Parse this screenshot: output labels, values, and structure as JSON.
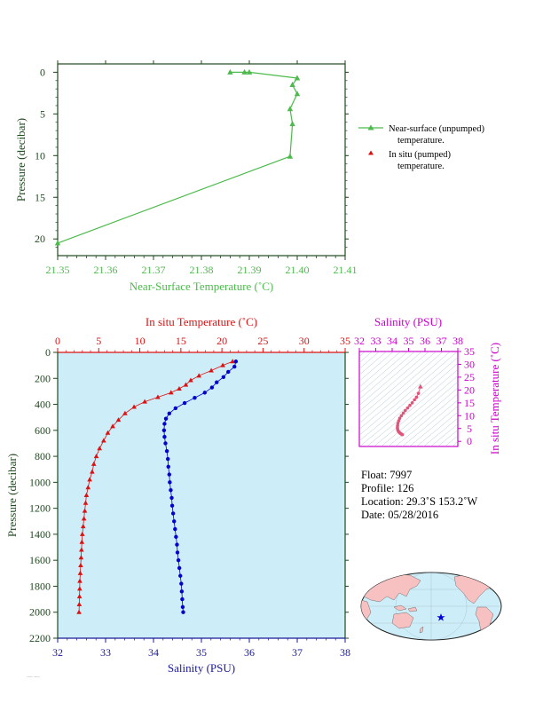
{
  "colors": {
    "green": "#4cbb4c",
    "green_axis": "#1f4a1f",
    "red": "#dd1111",
    "blue": "#0000cc",
    "navy": "#1a1a99",
    "magenta": "#cc00cc",
    "plot_bg": "#cdeef8",
    "land": "#f7c1c1",
    "ocean": "#cdeef8"
  },
  "info": {
    "float_line": "Float:  7997",
    "profile_line": "Profile:  126",
    "location_line": "Location:  29.3˚S  153.2˚W",
    "date_line": "Date:  05/28/2016"
  },
  "chart_data": [
    {
      "id": "near_surface",
      "type": "line",
      "xlabel": "Near-Surface Temperature (˚C)",
      "ylabel": "Pressure (decibar)",
      "xlim": [
        21.35,
        21.41
      ],
      "ylim": [
        22,
        -1
      ],
      "xticks": [
        "21.35",
        "21.36",
        "21.37",
        "21.38",
        "21.39",
        "21.40",
        "21.41"
      ],
      "yticks": [
        "0",
        "5",
        "10",
        "15",
        "20"
      ],
      "legend": [
        {
          "line1": "Near-surface (unpumped)",
          "line2": "temperature."
        },
        {
          "line1": "In situ (pumped)",
          "line2": "temperature."
        }
      ],
      "series": [
        {
          "name": "Near-surface (unpumped) temperature.",
          "x": [
            21.35,
            21.3985,
            21.399,
            21.3985,
            21.4,
            21.399,
            21.4,
            21.39,
            21.389,
            21.386
          ],
          "y": [
            20.5,
            10.1,
            6.2,
            4.4,
            2.6,
            1.5,
            0.7,
            0.0,
            0.0,
            0.0
          ]
        }
      ]
    },
    {
      "id": "profile",
      "type": "scatter",
      "xlabel": "Salinity (PSU)",
      "x2label": "In situ Temperature (˚C)",
      "ylabel": "Pressure (decibar)",
      "xlim": [
        32,
        38
      ],
      "x2lim": [
        0,
        35
      ],
      "ylim": [
        2200,
        0
      ],
      "xticks": [
        "32",
        "33",
        "34",
        "35",
        "36",
        "37",
        "38"
      ],
      "x2ticks": [
        "0",
        "5",
        "10",
        "15",
        "20",
        "25",
        "30",
        "35"
      ],
      "yticks": [
        "0",
        "200",
        "400",
        "600",
        "800",
        "1000",
        "1200",
        "1400",
        "1600",
        "1800",
        "2000",
        "2200"
      ],
      "series": [
        {
          "name": "In situ Temperature",
          "pressure": [
            70,
            100,
            140,
            180,
            215,
            250,
            280,
            310,
            345,
            380,
            420,
            470,
            520,
            570,
            620,
            680,
            740,
            800,
            860,
            920,
            980,
            1040,
            1100,
            1160,
            1220,
            1280,
            1340,
            1400,
            1460,
            1520,
            1580,
            1640,
            1700,
            1760,
            1820,
            1880,
            1940,
            2000
          ],
          "values": [
            21.3,
            20.1,
            18.7,
            17.2,
            16.2,
            15.6,
            14.8,
            13.8,
            12.2,
            10.6,
            9.3,
            8.2,
            7.4,
            6.7,
            6.1,
            5.6,
            5.1,
            4.7,
            4.4,
            4.2,
            3.9,
            3.7,
            3.5,
            3.4,
            3.3,
            3.2,
            3.1,
            3.0,
            2.95,
            2.9,
            2.85,
            2.8,
            2.75,
            2.7,
            2.68,
            2.66,
            2.63,
            2.6
          ]
        },
        {
          "name": "Salinity",
          "pressure": [
            70,
            110,
            150,
            190,
            230,
            270,
            310,
            350,
            390,
            430,
            470,
            510,
            550,
            600,
            650,
            700,
            760,
            820,
            880,
            940,
            1000,
            1060,
            1120,
            1180,
            1240,
            1300,
            1360,
            1420,
            1480,
            1540,
            1600,
            1660,
            1720,
            1780,
            1840,
            1900,
            1960,
            2000
          ],
          "values": [
            35.72,
            35.69,
            35.56,
            35.46,
            35.32,
            35.22,
            35.07,
            34.86,
            34.65,
            34.46,
            34.33,
            34.26,
            34.23,
            34.22,
            34.23,
            34.25,
            34.28,
            34.3,
            34.31,
            34.33,
            34.34,
            34.36,
            34.38,
            34.39,
            34.41,
            34.43,
            34.45,
            34.47,
            34.49,
            34.5,
            34.52,
            34.54,
            34.56,
            34.58,
            34.59,
            34.6,
            34.61,
            34.62
          ]
        }
      ]
    },
    {
      "id": "ts_diagram",
      "type": "scatter",
      "xlabel": "Salinity (PSU)",
      "ylabel": "In situ Temperature (˚C)",
      "xlim": [
        32,
        38
      ],
      "ylim": [
        -2,
        35
      ],
      "xticks": [
        "32",
        "33",
        "34",
        "35",
        "36",
        "37",
        "38"
      ],
      "yticks": [
        "0",
        "5",
        "10",
        "15",
        "20",
        "25",
        "30",
        "35"
      ],
      "series": [
        {
          "name": "T-S",
          "x": [
            35.72,
            35.6,
            35.48,
            35.36,
            35.22,
            35.08,
            34.94,
            34.8,
            34.68,
            34.56,
            34.46,
            34.4,
            34.35,
            34.33,
            34.32,
            34.33,
            34.35,
            34.38,
            34.42,
            34.46,
            34.5,
            34.55,
            34.6,
            34.62
          ],
          "y": [
            21.3,
            18.7,
            17.2,
            16.2,
            15.0,
            14.0,
            13.0,
            12.0,
            11.0,
            10.0,
            9.0,
            8.0,
            7.0,
            6.1,
            5.4,
            4.8,
            4.3,
            3.9,
            3.6,
            3.3,
            3.1,
            2.9,
            2.7,
            2.6
          ]
        }
      ]
    }
  ]
}
